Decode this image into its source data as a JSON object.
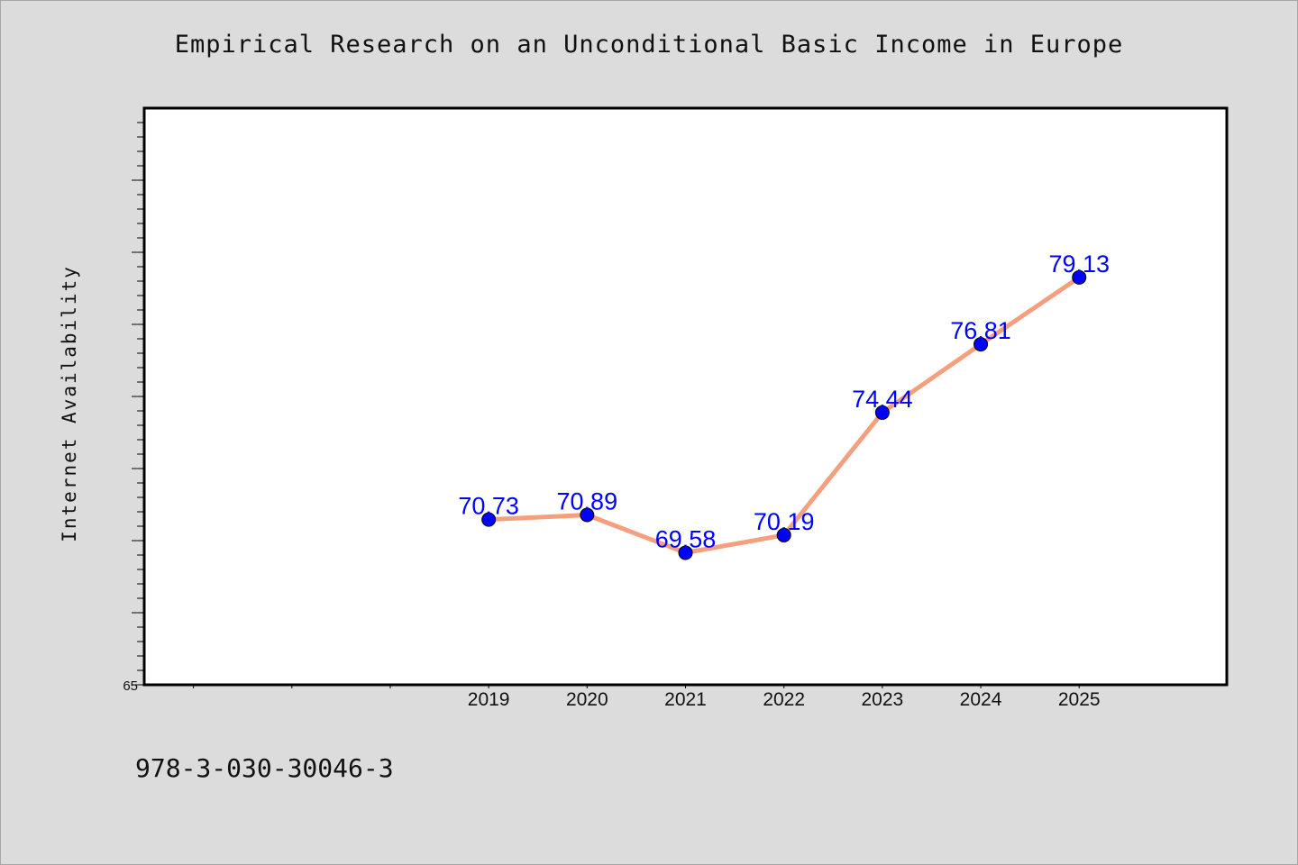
{
  "colors": {
    "background": "#dcdcdc",
    "plot_background": "#ffffff",
    "line": "#f4a07e",
    "marker": "#0000ff",
    "label": "#0000ff"
  },
  "chart_data": {
    "type": "line",
    "title": "Empirical Research on an Unconditional Basic Income in Europe",
    "xlabel": "",
    "ylabel": "Internet Availability",
    "x": [
      "2019",
      "2020",
      "2021",
      "2022",
      "2023",
      "2024",
      "2025"
    ],
    "series": [
      {
        "values": [
          70.73,
          70.89,
          69.58,
          70.19,
          74.44,
          76.81,
          79.13
        ]
      }
    ],
    "data_labels": [
      "70.73",
      "70.89",
      "69.58",
      "70.19",
      "74.44",
      "76.81",
      "79.13"
    ],
    "y_tick_labels": [
      "65"
    ],
    "ylim": [
      65,
      85
    ],
    "xlim": [
      2015.5,
      2026.5
    ],
    "grid": false,
    "legend": "none"
  },
  "footer": {
    "isbn": "978-3-030-30046-3"
  }
}
